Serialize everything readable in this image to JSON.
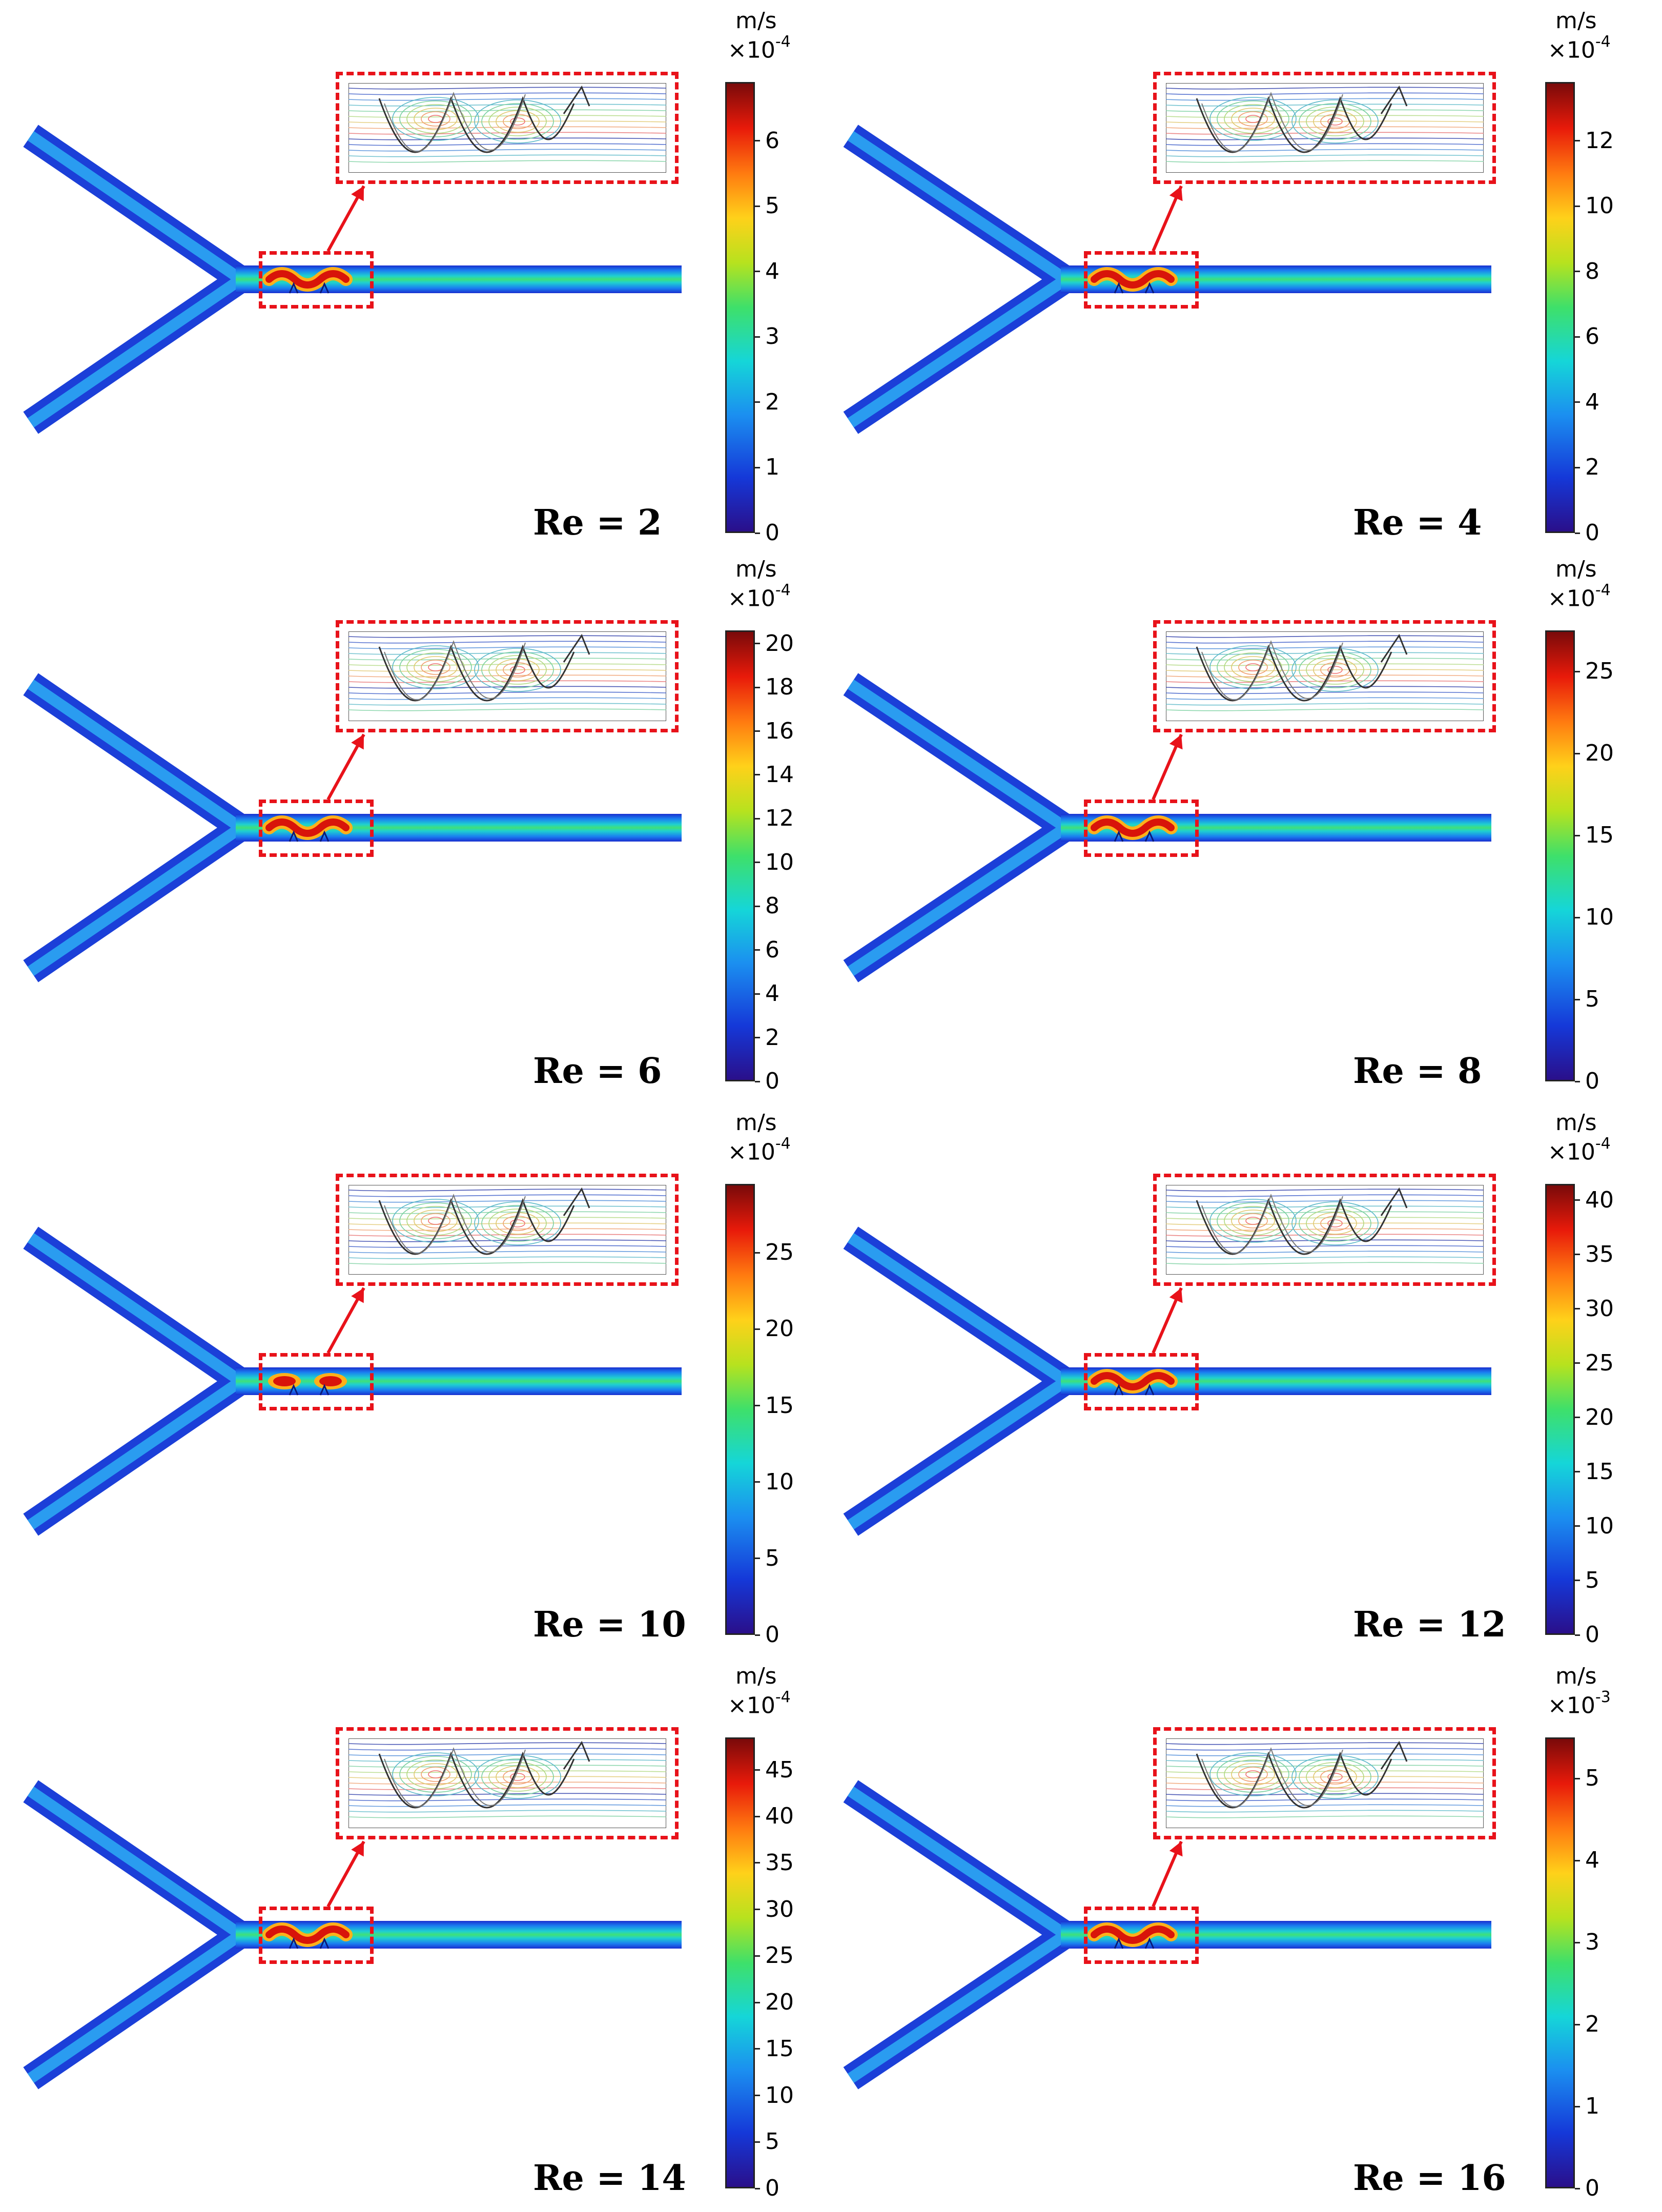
{
  "figure": {
    "panels": [
      {
        "re_label": "Re = 2",
        "unit": "m/s",
        "scale_base": "×10",
        "scale_exp": "-4",
        "ticks": [
          "0",
          "1",
          "2",
          "3",
          "4",
          "5",
          "6"
        ],
        "max": 6.9
      },
      {
        "re_label": "Re = 4",
        "unit": "m/s",
        "scale_base": "×10",
        "scale_exp": "-4",
        "ticks": [
          "0",
          "2",
          "4",
          "6",
          "8",
          "10",
          "12"
        ],
        "max": 13.8
      },
      {
        "re_label": "Re = 6",
        "unit": "m/s",
        "scale_base": "×10",
        "scale_exp": "-4",
        "ticks": [
          "0",
          "2",
          "4",
          "6",
          "8",
          "10",
          "12",
          "14",
          "16",
          "18",
          "20"
        ],
        "max": 20.6
      },
      {
        "re_label": "Re = 8",
        "unit": "m/s",
        "scale_base": "×10",
        "scale_exp": "-4",
        "ticks": [
          "0",
          "5",
          "10",
          "15",
          "20",
          "25"
        ],
        "max": 27.5
      },
      {
        "re_label": "Re = 10",
        "unit": "m/s",
        "scale_base": "×10",
        "scale_exp": "-4",
        "ticks": [
          "0",
          "5",
          "10",
          "15",
          "20",
          "25"
        ],
        "max": 29.5
      },
      {
        "re_label": "Re = 12",
        "unit": "m/s",
        "scale_base": "×10",
        "scale_exp": "-4",
        "ticks": [
          "0",
          "5",
          "10",
          "15",
          "20",
          "25",
          "30",
          "35",
          "40"
        ],
        "max": 41.5
      },
      {
        "re_label": "Re = 14",
        "unit": "m/s",
        "scale_base": "×10",
        "scale_exp": "-4",
        "ticks": [
          "0",
          "5",
          "10",
          "15",
          "20",
          "25",
          "30",
          "35",
          "40",
          "45"
        ],
        "max": 48.5
      },
      {
        "re_label": "Re = 16",
        "unit": "m/s",
        "scale_base": "×10",
        "scale_exp": "-3",
        "ticks": [
          "0",
          "1",
          "2",
          "3",
          "4",
          "5"
        ],
        "max": 5.5
      }
    ],
    "colors": {
      "highlight_box": "#e8121a",
      "arrow": "#e8121a",
      "channel_wall": "#1a2fd0",
      "channel_core": "#22d17a"
    }
  }
}
